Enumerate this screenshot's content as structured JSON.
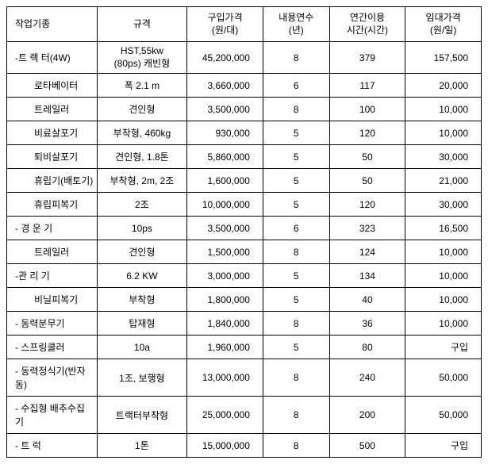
{
  "headers": {
    "col1": "작업기종",
    "col2": "규격",
    "col3_line1": "구입가격",
    "col3_line2": "(원/대)",
    "col4_line1": "내용연수",
    "col4_line2": "(년)",
    "col5_line1": "연간이용",
    "col5_line2": "시간(시간)",
    "col6_line1": "임대가격",
    "col6_line2": "(원/일)"
  },
  "rows": [
    {
      "name": "-트 랙 터(4W)",
      "spec_line1": "HST,55kw",
      "spec_line2": "(80ps) 캐빈형",
      "indent": false,
      "price": "45,200,000",
      "years": "8",
      "hours": "379",
      "rent": "157,500"
    },
    {
      "name": "로타베이터",
      "spec": "폭 2.1 m",
      "indent": true,
      "price": "3,660,000",
      "years": "6",
      "hours": "117",
      "rent": "20,000"
    },
    {
      "name": "트레일러",
      "spec": "견인형",
      "indent": true,
      "price": "3,500,000",
      "years": "8",
      "hours": "100",
      "rent": "10,000"
    },
    {
      "name": "비료살포기",
      "spec": "부착형, 460kg",
      "indent": true,
      "price": "930,000",
      "years": "5",
      "hours": "120",
      "rent": "10,000"
    },
    {
      "name": "퇴비살포기",
      "spec": "견인형, 1.8톤",
      "indent": true,
      "price": "5,860,000",
      "years": "5",
      "hours": "50",
      "rent": "30,000"
    },
    {
      "name": "휴립기(배토기)",
      "spec": "부착형, 2m, 2조",
      "indent": true,
      "price": "1,600,000",
      "years": "5",
      "hours": "50",
      "rent": "21,000"
    },
    {
      "name": "휴립피복기",
      "spec": "2조",
      "indent": true,
      "price": "10,000,000",
      "years": "5",
      "hours": "120",
      "rent": "30,000"
    },
    {
      "name": "- 경 운 기",
      "spec": "10ps",
      "indent": false,
      "price": "3,500,000",
      "years": "6",
      "hours": "323",
      "rent": "16,500"
    },
    {
      "name": "트레일러",
      "spec": "견인형",
      "indent": true,
      "price": "1,500,000",
      "years": "8",
      "hours": "124",
      "rent": "10,000"
    },
    {
      "name": "-관 리 기",
      "spec": "6.2 KW",
      "indent": false,
      "price": "3,000,000",
      "years": "5",
      "hours": "134",
      "rent": "10,000"
    },
    {
      "name": "비닐피복기",
      "spec": "부착형",
      "indent": true,
      "price": "1,800,000",
      "years": "5",
      "hours": "40",
      "rent": "10,000"
    },
    {
      "name": "- 동력분무기",
      "spec": "탑재형",
      "indent": false,
      "price": "1,840,000",
      "years": "8",
      "hours": "36",
      "rent": "10,000"
    },
    {
      "name": "- 스프링쿨러",
      "spec": "10a",
      "indent": false,
      "price": "1,960,000",
      "years": "5",
      "hours": "80",
      "rent": "구입"
    },
    {
      "name": "- 동력정식기(반자동)",
      "spec": "1조, 보행형",
      "indent": false,
      "price": "13,000,000",
      "years": "8",
      "hours": "240",
      "rent": "50,000"
    },
    {
      "name": "- 수집형 배추수집기",
      "spec": "트랙터부착형",
      "indent": false,
      "price": "25,000,000",
      "years": "8",
      "hours": "200",
      "rent": "50,000"
    },
    {
      "name": "- 트 럭",
      "spec": "1톤",
      "indent": false,
      "price": "15,000,000",
      "years": "8",
      "hours": "500",
      "rent": "구입"
    }
  ]
}
